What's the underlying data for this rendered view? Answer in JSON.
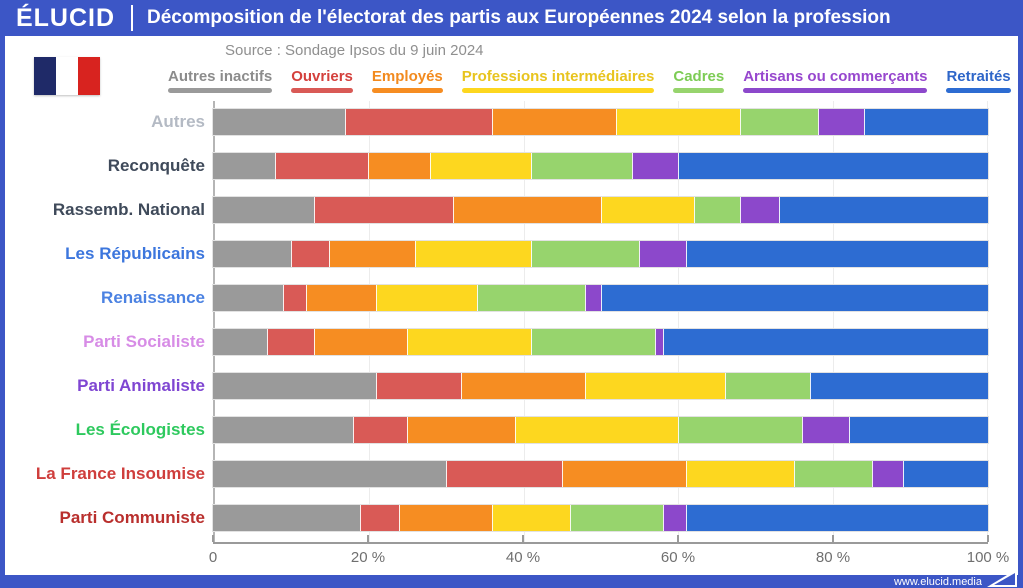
{
  "header": {
    "logo": "ÉLUCID",
    "title": "Décomposition de l'électorat des partis aux Européennes 2024 selon la profession"
  },
  "source": "Source : Sondage Ipsos du 9 juin 2024",
  "footer": {
    "site": "www.elucid.media"
  },
  "colors": {
    "frame_blue": "#3c56c6",
    "flag": [
      "#1f2a68",
      "#ffffff",
      "#d8231f"
    ],
    "axis": "#9a9a9a",
    "grid": "#ececec"
  },
  "chart_data": {
    "type": "bar",
    "stacked": true,
    "orientation": "horizontal",
    "unit": "%",
    "title": "Décomposition de l'électorat des partis aux Européennes 2024 selon la profession",
    "series_labels": [
      "Autres inactifs",
      "Ouvriers",
      "Employés",
      "Professions intermédiaires",
      "Cadres",
      "Artisans ou commerçants",
      "Retraités"
    ],
    "series_colors": [
      "#9a9a9a",
      "#d95a56",
      "#f68d22",
      "#fdd71f",
      "#97d46d",
      "#8c48cb",
      "#2d6cd2"
    ],
    "series_text_colors": [
      "#8c8c8c",
      "#d4403c",
      "#f28a1e",
      "#e8c41e",
      "#7dcc55",
      "#9747ce",
      "#2e66c9"
    ],
    "categories": [
      "Autres",
      "Reconquête",
      "Rassemb. National",
      "Les Républicains",
      "Renaissance",
      "Parti Socialiste",
      "Parti Animaliste",
      "Les Écologistes",
      "La France Insoumise",
      "Parti Communiste"
    ],
    "category_colors": [
      "#b4bac4",
      "#3f4a5a",
      "#3f4a5a",
      "#3c76dd",
      "#4b82e2",
      "#d78ce6",
      "#7f46d2",
      "#2ec95e",
      "#cf3e3c",
      "#b92f2d"
    ],
    "rows": [
      [
        17,
        19,
        16,
        16,
        10,
        6,
        16
      ],
      [
        8,
        12,
        8,
        13,
        13,
        6,
        40
      ],
      [
        13,
        18,
        19,
        12,
        6,
        5,
        27
      ],
      [
        10,
        5,
        11,
        15,
        14,
        6,
        39
      ],
      [
        9,
        3,
        9,
        13,
        14,
        2,
        50
      ],
      [
        7,
        6,
        12,
        16,
        16,
        1,
        42
      ],
      [
        21,
        11,
        16,
        18,
        11,
        0,
        23
      ],
      [
        18,
        7,
        14,
        21,
        16,
        6,
        18
      ],
      [
        30,
        15,
        16,
        14,
        10,
        4,
        11
      ],
      [
        19,
        5,
        12,
        10,
        12,
        3,
        39
      ]
    ],
    "x_ticks": [
      "0",
      "20 %",
      "40 %",
      "60 %",
      "80 %",
      "100 %"
    ],
    "xlim": [
      0,
      100
    ],
    "grid": true,
    "legend_position": "top"
  }
}
